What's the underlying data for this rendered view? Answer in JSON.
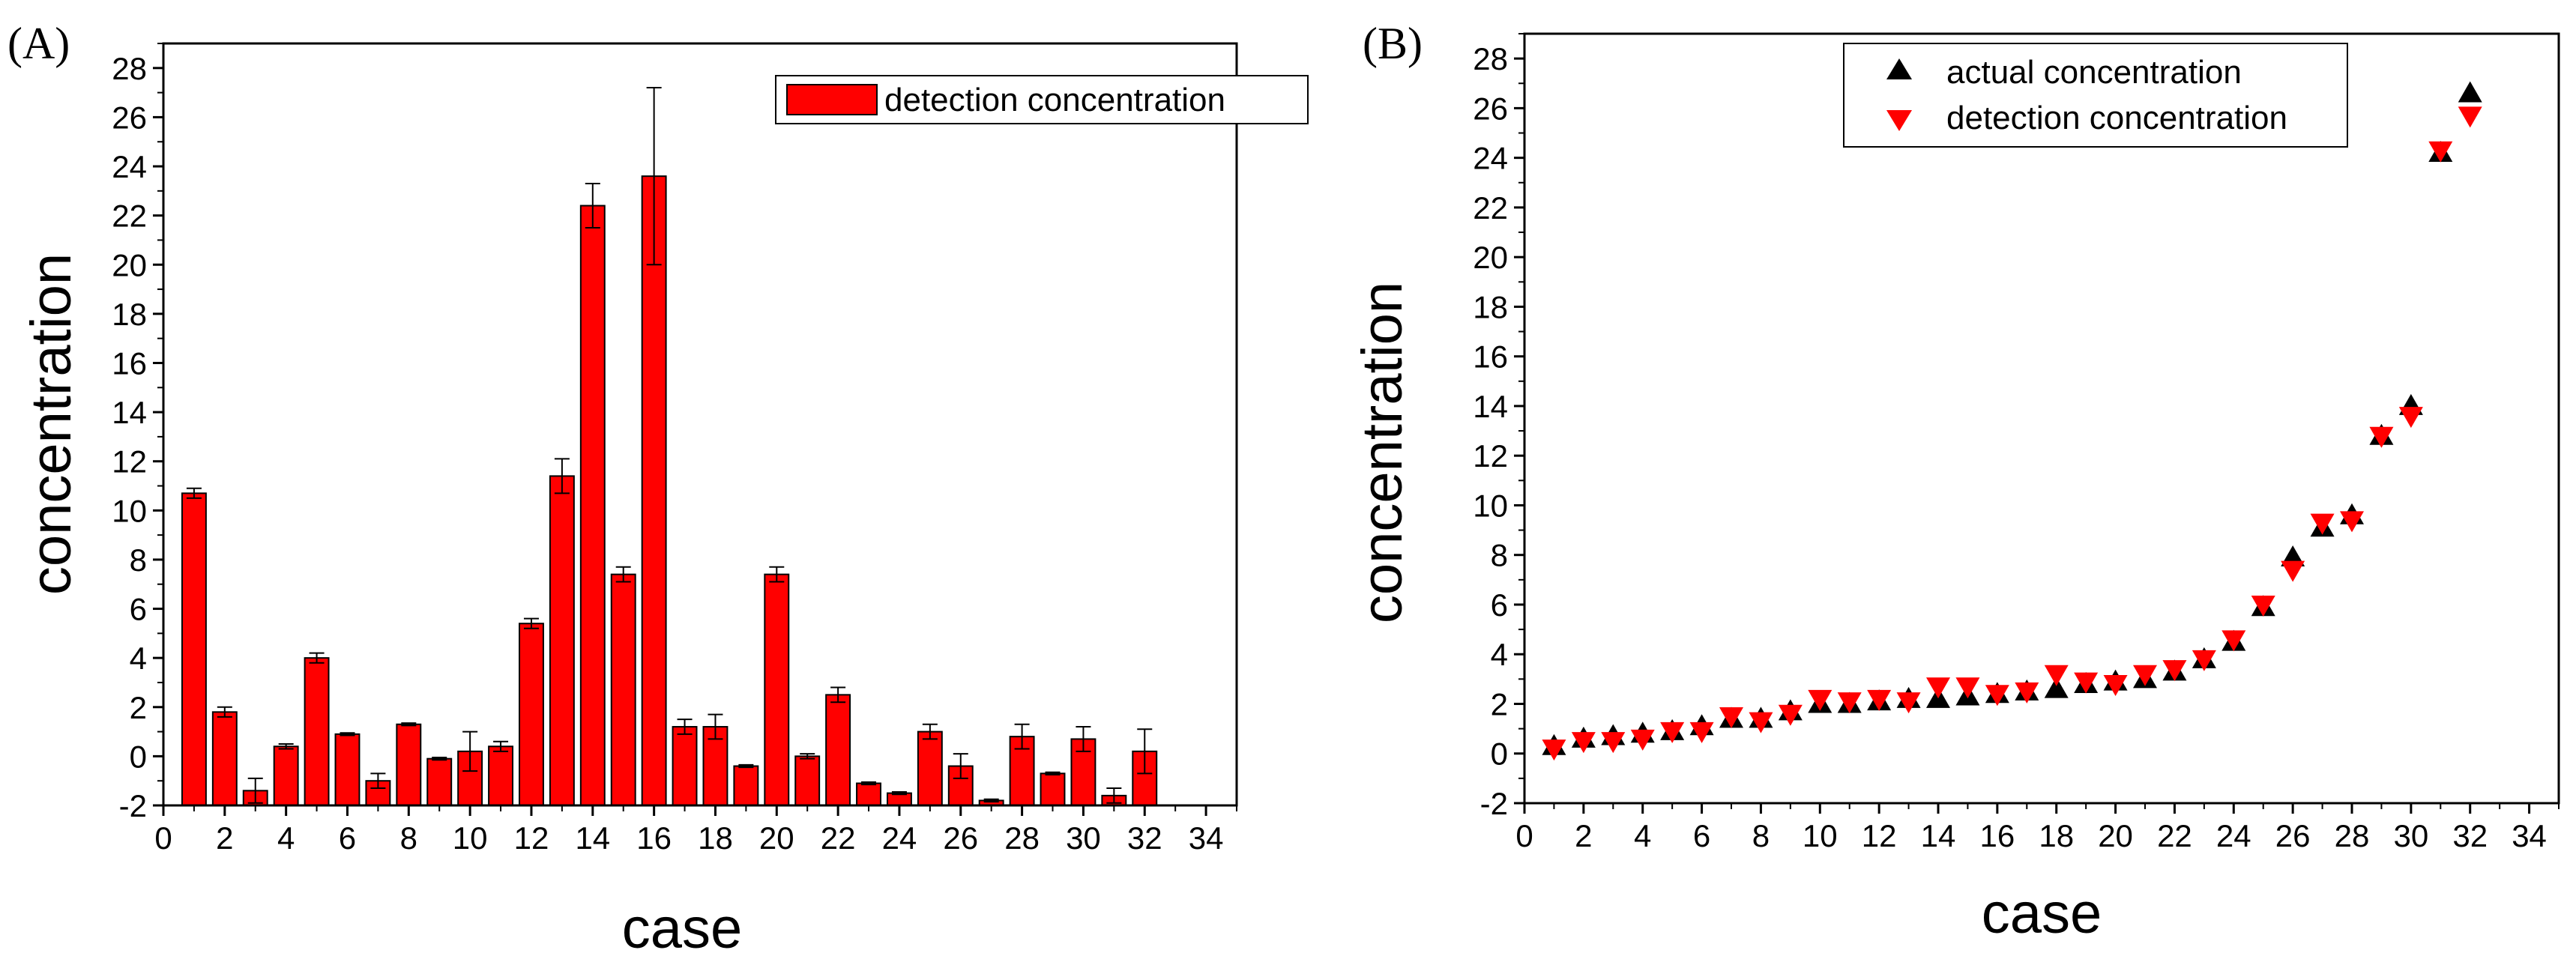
{
  "chart_data": [
    {
      "panel_label": "(A)",
      "type": "bar",
      "xlabel": "case",
      "ylabel": "concentration",
      "xlim": [
        0,
        35
      ],
      "ylim": [
        -2,
        29
      ],
      "x_ticks": [
        0,
        2,
        4,
        6,
        8,
        10,
        12,
        14,
        16,
        18,
        20,
        22,
        24,
        26,
        28,
        30,
        32,
        34
      ],
      "y_ticks": [
        -2,
        0,
        2,
        4,
        6,
        8,
        10,
        12,
        14,
        16,
        18,
        20,
        22,
        24,
        26,
        28
      ],
      "legend": {
        "position": "top-right",
        "entries": [
          "detection concentration"
        ]
      },
      "grid": false,
      "color": "#ff0000",
      "series": [
        {
          "name": "detection concentration",
          "x": [
            1,
            2,
            3,
            4,
            5,
            6,
            7,
            8,
            9,
            10,
            11,
            12,
            13,
            14,
            15,
            16,
            17,
            18,
            19,
            20,
            21,
            22,
            23,
            24,
            25,
            26,
            27,
            28,
            29,
            30,
            31,
            32
          ],
          "values": [
            10.7,
            1.8,
            -1.4,
            0.4,
            4.0,
            0.9,
            -1.0,
            1.3,
            -0.1,
            0.2,
            0.4,
            5.4,
            11.4,
            22.4,
            7.4,
            23.6,
            1.2,
            1.2,
            -0.4,
            7.4,
            0.0,
            2.5,
            -1.1,
            -1.5,
            1.0,
            -0.4,
            -1.8,
            0.8,
            -0.7,
            0.7,
            -1.6,
            0.2
          ],
          "error": [
            0.2,
            0.2,
            0.5,
            0.1,
            0.2,
            0.05,
            0.3,
            0.05,
            0.05,
            0.8,
            0.2,
            0.2,
            0.7,
            0.9,
            0.3,
            3.6,
            0.3,
            0.5,
            0.05,
            0.3,
            0.1,
            0.3,
            0.05,
            0.05,
            0.3,
            0.5,
            0.05,
            0.5,
            0.05,
            0.5,
            0.3,
            0.9
          ]
        }
      ]
    },
    {
      "panel_label": "(B)",
      "type": "scatter",
      "xlabel": "case",
      "ylabel": "concentration",
      "xlim": [
        0,
        35
      ],
      "ylim": [
        -2,
        29
      ],
      "x_ticks": [
        0,
        2,
        4,
        6,
        8,
        10,
        12,
        14,
        16,
        18,
        20,
        22,
        24,
        26,
        28,
        30,
        32,
        34
      ],
      "y_ticks": [
        -2,
        0,
        2,
        4,
        6,
        8,
        10,
        12,
        14,
        16,
        18,
        20,
        22,
        24,
        26,
        28
      ],
      "legend": {
        "position": "top-center",
        "entries": [
          "actual concentration",
          "detection concentration"
        ]
      },
      "grid": false,
      "x": [
        1,
        2,
        3,
        4,
        5,
        6,
        7,
        8,
        9,
        10,
        11,
        12,
        13,
        14,
        15,
        16,
        17,
        18,
        19,
        20,
        21,
        22,
        23,
        24,
        25,
        26,
        27,
        28,
        29,
        30,
        31,
        32
      ],
      "series": [
        {
          "name": "actual concentration",
          "marker": "triangle-up",
          "color": "#000000",
          "values": [
            0.3,
            0.6,
            0.7,
            0.8,
            0.9,
            1.1,
            1.4,
            1.4,
            1.7,
            2.0,
            2.0,
            2.1,
            2.2,
            2.2,
            2.3,
            2.4,
            2.5,
            2.6,
            2.8,
            2.9,
            3.0,
            3.3,
            3.8,
            4.5,
            5.9,
            7.9,
            9.1,
            9.6,
            12.8,
            14.0,
            24.2,
            26.6
          ]
        },
        {
          "name": "detection concentration",
          "marker": "triangle-down",
          "color": "#ff0000",
          "values": [
            0.2,
            0.5,
            0.5,
            0.6,
            0.9,
            0.9,
            1.5,
            1.3,
            1.6,
            2.2,
            2.1,
            2.2,
            2.1,
            2.7,
            2.7,
            2.4,
            2.5,
            3.2,
            2.9,
            2.8,
            3.2,
            3.4,
            3.8,
            4.6,
            6.0,
            7.4,
            9.3,
            9.4,
            12.8,
            13.6,
            24.3,
            25.7
          ]
        }
      ]
    }
  ]
}
